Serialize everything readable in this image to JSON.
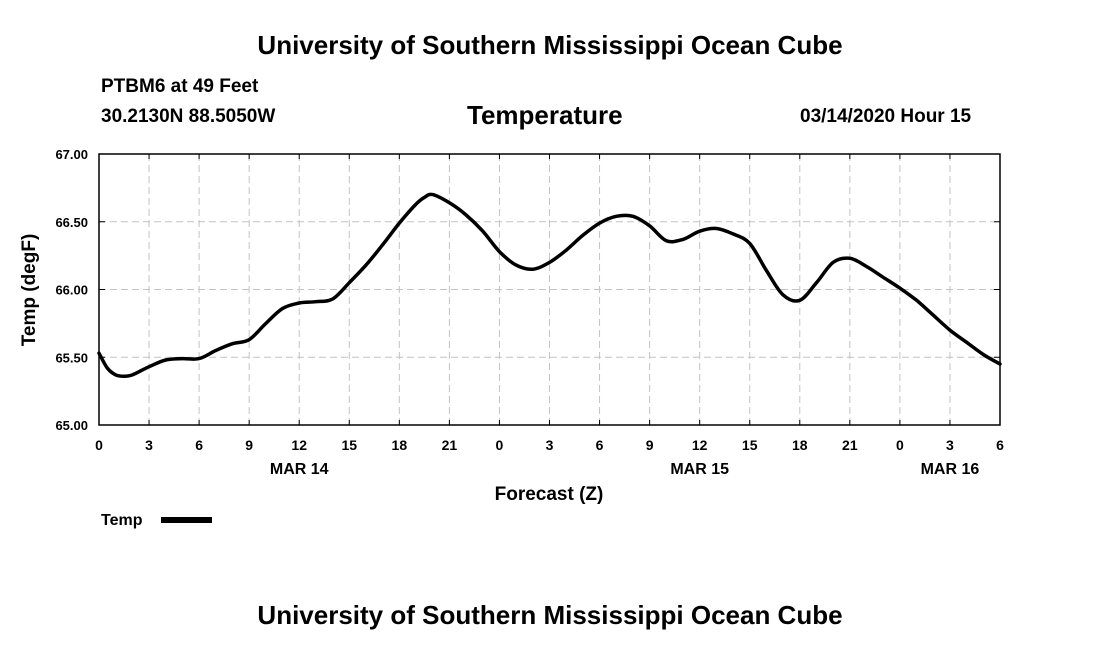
{
  "header": {
    "top_title": "University of Southern Mississippi Ocean Cube",
    "station": "PTBM6 at 49 Feet",
    "coordinates": "30.2130N 88.5050W",
    "valid_time": "03/14/2020 Hour 15",
    "bottom_title": "University of Southern Mississippi Ocean Cube"
  },
  "chart_data": {
    "type": "line",
    "title": "Temperature",
    "xlabel": "Forecast (Z)",
    "ylabel": "Temp (degF)",
    "ylim": [
      65.0,
      67.0
    ],
    "xlim": [
      0,
      54
    ],
    "yticks": [
      65.0,
      65.5,
      66.0,
      66.5,
      67.0
    ],
    "ytick_labels": [
      "65.00",
      "65.50",
      "66.00",
      "66.50",
      "67.00"
    ],
    "xticks": [
      0,
      3,
      6,
      9,
      12,
      15,
      18,
      21,
      24,
      27,
      30,
      33,
      36,
      39,
      42,
      45,
      48,
      51,
      54
    ],
    "xtick_labels": [
      "0",
      "3",
      "6",
      "9",
      "12",
      "15",
      "18",
      "21",
      "0",
      "3",
      "6",
      "9",
      "12",
      "15",
      "18",
      "21",
      "0",
      "3",
      "6"
    ],
    "date_labels": [
      {
        "x": 12,
        "label": "MAR 14"
      },
      {
        "x": 36,
        "label": "MAR 15"
      },
      {
        "x": 51,
        "label": "MAR 16"
      }
    ],
    "grid": true,
    "legend": {
      "label": "Temp",
      "placement": "bottom-left"
    },
    "series": [
      {
        "name": "Temp",
        "x": [
          0,
          0.5,
          1,
          1.5,
          2,
          3,
          4,
          5,
          6,
          7,
          8,
          9,
          10,
          11,
          12,
          13,
          14,
          15,
          16,
          17,
          18,
          19,
          19.5,
          20,
          21,
          22,
          23,
          24,
          25,
          26,
          27,
          28,
          29,
          30,
          31,
          32,
          33,
          34,
          35,
          36,
          37,
          38,
          39,
          40,
          41,
          42,
          43,
          44,
          45,
          46,
          47,
          48,
          49,
          50,
          51,
          52,
          53,
          54
        ],
        "values": [
          65.53,
          65.42,
          65.37,
          65.36,
          65.37,
          65.43,
          65.48,
          65.49,
          65.49,
          65.55,
          65.6,
          65.63,
          65.75,
          65.86,
          65.9,
          65.91,
          65.93,
          66.05,
          66.18,
          66.33,
          66.49,
          66.63,
          66.68,
          66.7,
          66.64,
          66.55,
          66.43,
          66.28,
          66.18,
          66.15,
          66.2,
          66.29,
          66.4,
          66.49,
          66.54,
          66.54,
          66.47,
          66.36,
          66.37,
          66.43,
          66.45,
          66.41,
          66.34,
          66.14,
          65.96,
          65.92,
          66.05,
          66.2,
          66.23,
          66.17,
          66.09,
          66.01,
          65.92,
          65.81,
          65.7,
          65.61,
          65.52,
          65.45
        ]
      }
    ]
  }
}
